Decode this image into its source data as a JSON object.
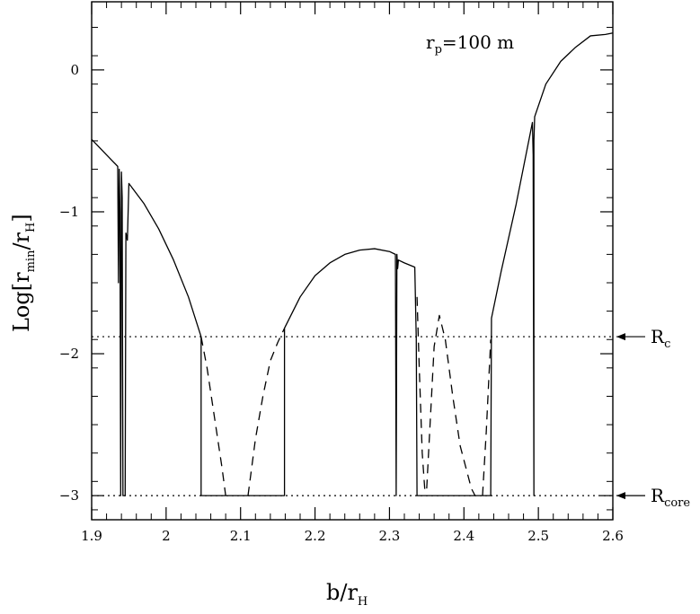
{
  "chart_data": {
    "type": "line",
    "title": "",
    "xlabel": {
      "main": "b/r",
      "sub": "H"
    },
    "ylabel": {
      "main": "Log[r",
      "sub1": "min",
      "mid": "/r",
      "sub2": "H",
      "end": "]"
    },
    "xlim": [
      1.9,
      2.6
    ],
    "ylim": [
      -3.17,
      0.48
    ],
    "x_ticks": [
      1.9,
      2.0,
      2.1,
      2.2,
      2.3,
      2.4,
      2.5,
      2.6
    ],
    "x_tick_labels": [
      "1.9",
      "2",
      "2.1",
      "2.2",
      "2.3",
      "2.4",
      "2.5",
      "2.6"
    ],
    "y_ticks": [
      0,
      -1,
      -2,
      -3
    ],
    "y_tick_labels": [
      "0",
      "−1",
      "−2",
      "−3"
    ],
    "annotation": {
      "main": "r",
      "sub": "p",
      "rest": "=100  m"
    },
    "reference_lines": [
      {
        "y": -1.88,
        "style": "dotted",
        "label_main": "R",
        "label_sub": "c"
      },
      {
        "y": -3.0,
        "style": "dotted",
        "label_main": "R",
        "label_sub": "core"
      }
    ],
    "series": [
      {
        "style": "solid",
        "segments": [
          [
            [
              1.9,
              -0.49
            ],
            [
              1.935,
              -0.68
            ],
            [
              1.936,
              -1.5
            ],
            [
              1.937,
              -0.7
            ],
            [
              1.938,
              -1.0
            ],
            [
              1.939,
              -3.0
            ],
            [
              1.94,
              -0.72
            ],
            [
              1.941,
              -0.9
            ],
            [
              1.942,
              -3.0
            ],
            [
              1.945,
              -3.0
            ],
            [
              1.946,
              -1.15
            ],
            [
              1.948,
              -1.2
            ],
            [
              1.95,
              -0.8
            ],
            [
              1.97,
              -0.94
            ],
            [
              1.99,
              -1.12
            ],
            [
              2.01,
              -1.34
            ],
            [
              2.03,
              -1.6
            ],
            [
              2.047,
              -1.88
            ],
            [
              2.047,
              -3.0
            ],
            [
              2.1,
              -3.0
            ],
            [
              2.159,
              -3.0
            ],
            [
              2.159,
              -1.82
            ],
            [
              2.18,
              -1.6
            ],
            [
              2.2,
              -1.45
            ],
            [
              2.22,
              -1.36
            ],
            [
              2.24,
              -1.3
            ],
            [
              2.26,
              -1.27
            ],
            [
              2.28,
              -1.26
            ],
            [
              2.3,
              -1.28
            ],
            [
              2.308,
              -1.3
            ],
            [
              2.309,
              -3.0
            ],
            [
              2.31,
              -1.3
            ],
            [
              2.311,
              -1.4
            ],
            [
              2.312,
              -1.34
            ],
            [
              2.32,
              -1.36
            ],
            [
              2.334,
              -1.39
            ],
            [
              2.336,
              -1.9
            ],
            [
              2.337,
              -3.0
            ],
            [
              2.38,
              -3.0
            ],
            [
              2.436,
              -3.0
            ],
            [
              2.437,
              -1.75
            ],
            [
              2.45,
              -1.42
            ],
            [
              2.47,
              -0.95
            ],
            [
              2.492,
              -0.37
            ],
            [
              2.493,
              -0.6
            ],
            [
              2.494,
              -3.0
            ],
            [
              2.494,
              -0.5
            ],
            [
              2.495,
              -0.33
            ],
            [
              2.51,
              -0.1
            ],
            [
              2.53,
              0.06
            ],
            [
              2.55,
              0.16
            ],
            [
              2.57,
              0.24
            ],
            [
              2.59,
              0.25
            ],
            [
              2.6,
              0.26
            ]
          ]
        ]
      },
      {
        "style": "dashed",
        "segments": [
          [
            [
              2.047,
              -1.88
            ],
            [
              2.055,
              -2.1
            ],
            [
              2.065,
              -2.45
            ],
            [
              2.075,
              -2.8
            ],
            [
              2.08,
              -3.0
            ]
          ],
          [
            [
              2.11,
              -3.0
            ],
            [
              2.12,
              -2.6
            ],
            [
              2.13,
              -2.3
            ],
            [
              2.14,
              -2.05
            ],
            [
              2.15,
              -1.92
            ],
            [
              2.159,
              -1.82
            ]
          ],
          [
            [
              2.337,
              -1.6
            ],
            [
              2.34,
              -2.1
            ],
            [
              2.344,
              -2.7
            ],
            [
              2.348,
              -3.0
            ]
          ],
          [
            [
              2.35,
              -2.95
            ],
            [
              2.355,
              -2.45
            ],
            [
              2.36,
              -1.95
            ],
            [
              2.367,
              -1.73
            ],
            [
              2.375,
              -1.9
            ],
            [
              2.385,
              -2.3
            ],
            [
              2.395,
              -2.65
            ],
            [
              2.41,
              -2.95
            ],
            [
              2.415,
              -3.0
            ]
          ],
          [
            [
              2.425,
              -3.0
            ],
            [
              2.43,
              -2.55
            ],
            [
              2.436,
              -1.9
            ]
          ]
        ]
      }
    ],
    "grid": false,
    "legend": "none"
  }
}
